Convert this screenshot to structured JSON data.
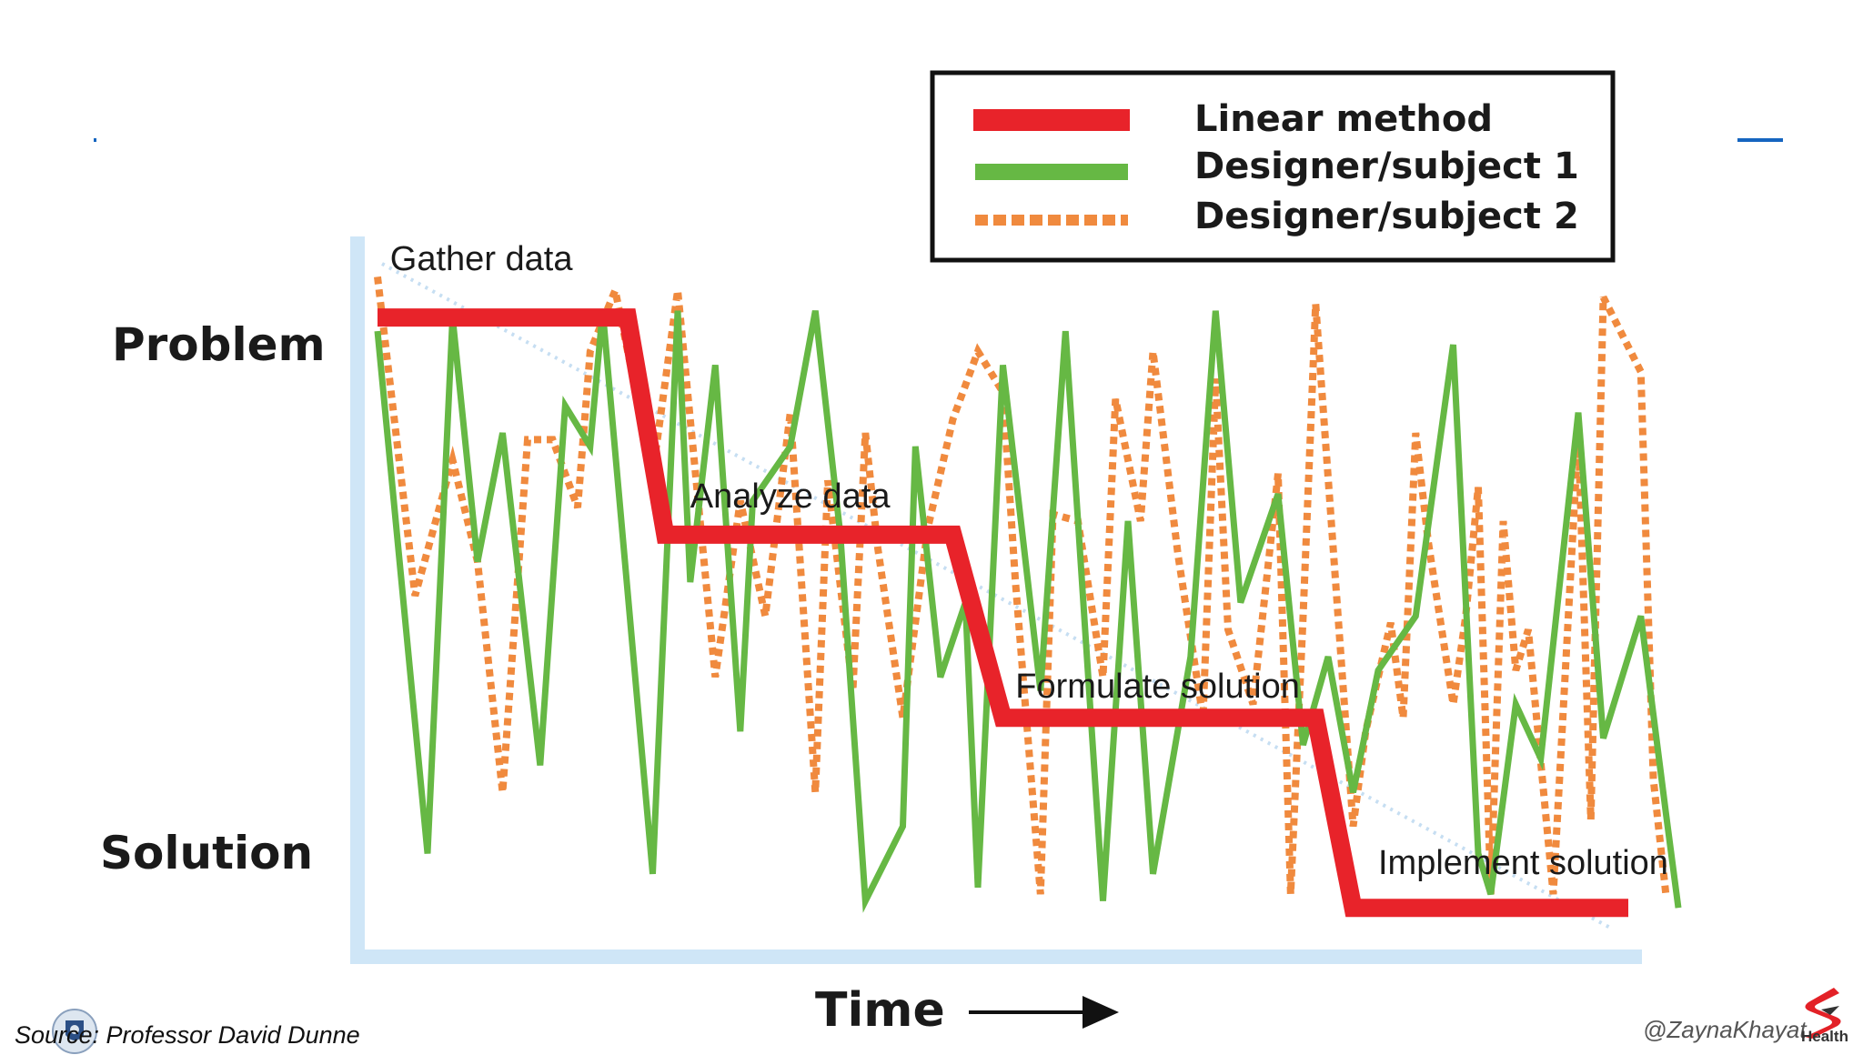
{
  "chart_data": {
    "type": "line",
    "xlabel": "Time",
    "y_categories": [
      "Problem",
      "Solution"
    ],
    "ylim": [
      0,
      100
    ],
    "xlim": [
      0,
      100
    ],
    "legend_position": "top-right",
    "stages": [
      {
        "label": "Gather data",
        "x": 1,
        "y": 98
      },
      {
        "label": "Analyze data",
        "x": 25,
        "y": 63
      },
      {
        "label": "Formulate solution",
        "x": 51,
        "y": 35
      },
      {
        "label": "Implement solution",
        "x": 80,
        "y": 9
      }
    ],
    "series": [
      {
        "name": "Linear method",
        "color": "#e8232a",
        "style": "solid-thick",
        "points": [
          [
            0,
            91
          ],
          [
            20,
            91
          ],
          [
            23,
            59
          ],
          [
            46,
            59
          ],
          [
            50,
            32
          ],
          [
            75,
            32
          ],
          [
            78,
            4
          ],
          [
            100,
            4
          ]
        ]
      },
      {
        "name": "Designer/subject 1",
        "color": "#66b844",
        "style": "solid",
        "points": [
          [
            0,
            89
          ],
          [
            4,
            12
          ],
          [
            6,
            91
          ],
          [
            8,
            55
          ],
          [
            10,
            74
          ],
          [
            13,
            25
          ],
          [
            15,
            78
          ],
          [
            17,
            72
          ],
          [
            18,
            92
          ],
          [
            22,
            9
          ],
          [
            24,
            92
          ],
          [
            25,
            52
          ],
          [
            27,
            84
          ],
          [
            29,
            30
          ],
          [
            30,
            64
          ],
          [
            33,
            72
          ],
          [
            35,
            92
          ],
          [
            37,
            59
          ],
          [
            39,
            5
          ],
          [
            42,
            16
          ],
          [
            43,
            72
          ],
          [
            45,
            38
          ],
          [
            47,
            49
          ],
          [
            48,
            7
          ],
          [
            50,
            84
          ],
          [
            53,
            36
          ],
          [
            55,
            89
          ],
          [
            58,
            5
          ],
          [
            60,
            61
          ],
          [
            62,
            9
          ],
          [
            65,
            41
          ],
          [
            67,
            92
          ],
          [
            69,
            49
          ],
          [
            72,
            65
          ],
          [
            74,
            28
          ],
          [
            76,
            41
          ],
          [
            78,
            21
          ],
          [
            80,
            39
          ],
          [
            83,
            47
          ],
          [
            86,
            87
          ],
          [
            88,
            12
          ],
          [
            89,
            6
          ],
          [
            91,
            34
          ],
          [
            93,
            26
          ],
          [
            96,
            77
          ],
          [
            98,
            29
          ],
          [
            101,
            47
          ],
          [
            103,
            18
          ],
          [
            104,
            4
          ]
        ]
      },
      {
        "name": "Designer/subject 2",
        "color": "#f08a3e",
        "style": "dotted",
        "points": [
          [
            0,
            97
          ],
          [
            3,
            50
          ],
          [
            6,
            70
          ],
          [
            8,
            55
          ],
          [
            10,
            21
          ],
          [
            12,
            73
          ],
          [
            14,
            73
          ],
          [
            16,
            63
          ],
          [
            17,
            86
          ],
          [
            19,
            95
          ],
          [
            22,
            68
          ],
          [
            24,
            95
          ],
          [
            27,
            38
          ],
          [
            29,
            64
          ],
          [
            31,
            47
          ],
          [
            33,
            77
          ],
          [
            35,
            21
          ],
          [
            36,
            67
          ],
          [
            38,
            36
          ],
          [
            39,
            74
          ],
          [
            40,
            57
          ],
          [
            42,
            32
          ],
          [
            44,
            60
          ],
          [
            46,
            76
          ],
          [
            48,
            86
          ],
          [
            50,
            80
          ],
          [
            51,
            52
          ],
          [
            53,
            6
          ],
          [
            54,
            62
          ],
          [
            56,
            61
          ],
          [
            58,
            38
          ],
          [
            59,
            79
          ],
          [
            61,
            61
          ],
          [
            62,
            86
          ],
          [
            64,
            56
          ],
          [
            66,
            32
          ],
          [
            67,
            82
          ],
          [
            68,
            45
          ],
          [
            70,
            34
          ],
          [
            72,
            68
          ],
          [
            73,
            6
          ],
          [
            74,
            47
          ],
          [
            75,
            93
          ],
          [
            78,
            16
          ],
          [
            79,
            30
          ],
          [
            81,
            46
          ],
          [
            82,
            32
          ],
          [
            83,
            74
          ],
          [
            84,
            58
          ],
          [
            86,
            34
          ],
          [
            87,
            47
          ],
          [
            88,
            66
          ],
          [
            89,
            6
          ],
          [
            90,
            61
          ],
          [
            91,
            39
          ],
          [
            92,
            45
          ],
          [
            94,
            6
          ],
          [
            96,
            74
          ],
          [
            97,
            17
          ],
          [
            98,
            94
          ],
          [
            101,
            83
          ],
          [
            102,
            23
          ],
          [
            103,
            6
          ]
        ]
      }
    ]
  },
  "footer": {
    "source": "Source: Professor David Dunne",
    "handle": "@ZaynaKhayat",
    "brand": "Health"
  },
  "colors": {
    "axis": "#cfe6f7",
    "guide": "#c6def2",
    "deco": "#1565c0"
  }
}
